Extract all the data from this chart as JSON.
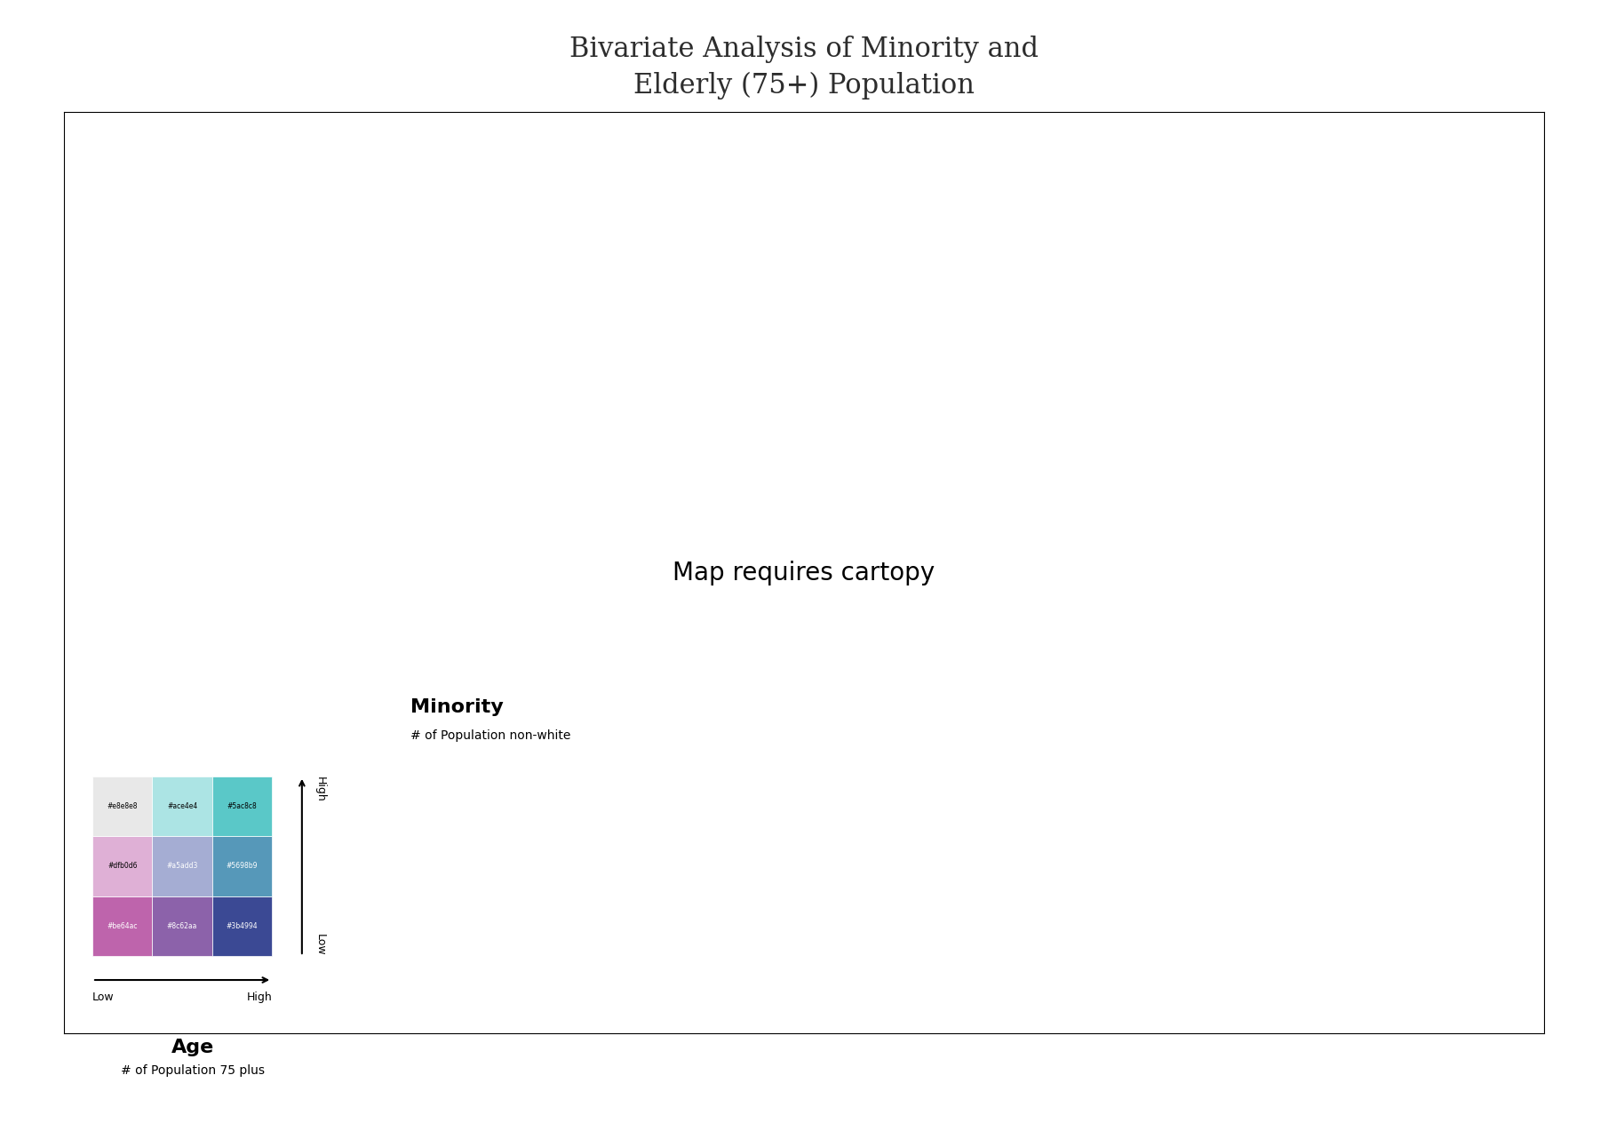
{
  "title": "Bivariate Analysis of Minority and\nElderly (75+) Population",
  "title_fontsize": 22,
  "title_color": "#2d2d2d",
  "background_color": "#ffffff",
  "legend_colors": {
    "row0_col0": "#be64ac",
    "row0_col1": "#8c62aa",
    "row0_col2": "#3b4994",
    "row1_col0": "#dfb0d6",
    "row1_col1": "#a5add3",
    "row1_col2": "#5698b9",
    "row2_col0": "#e8e8e8",
    "row2_col1": "#ace4e4",
    "row2_col2": "#5ac8c8"
  },
  "legend_labels": {
    "row0_col0": "#be64ac",
    "row0_col1": "#8c62aa",
    "row0_col2": "#3b4994",
    "row1_col0": "#dfb0d6",
    "row1_col1": "#a5add3",
    "row1_col2": "#5698b9",
    "row2_col0": "#e8e8e8",
    "row2_col1": "#ace4e4",
    "row2_col2": "#5ac8c8"
  },
  "minority_label": "Minority",
  "minority_sublabel": "# of Population non-white",
  "age_label": "Age",
  "age_sublabel": "# of Population 75 plus",
  "high_label": "High",
  "low_label": "Low"
}
